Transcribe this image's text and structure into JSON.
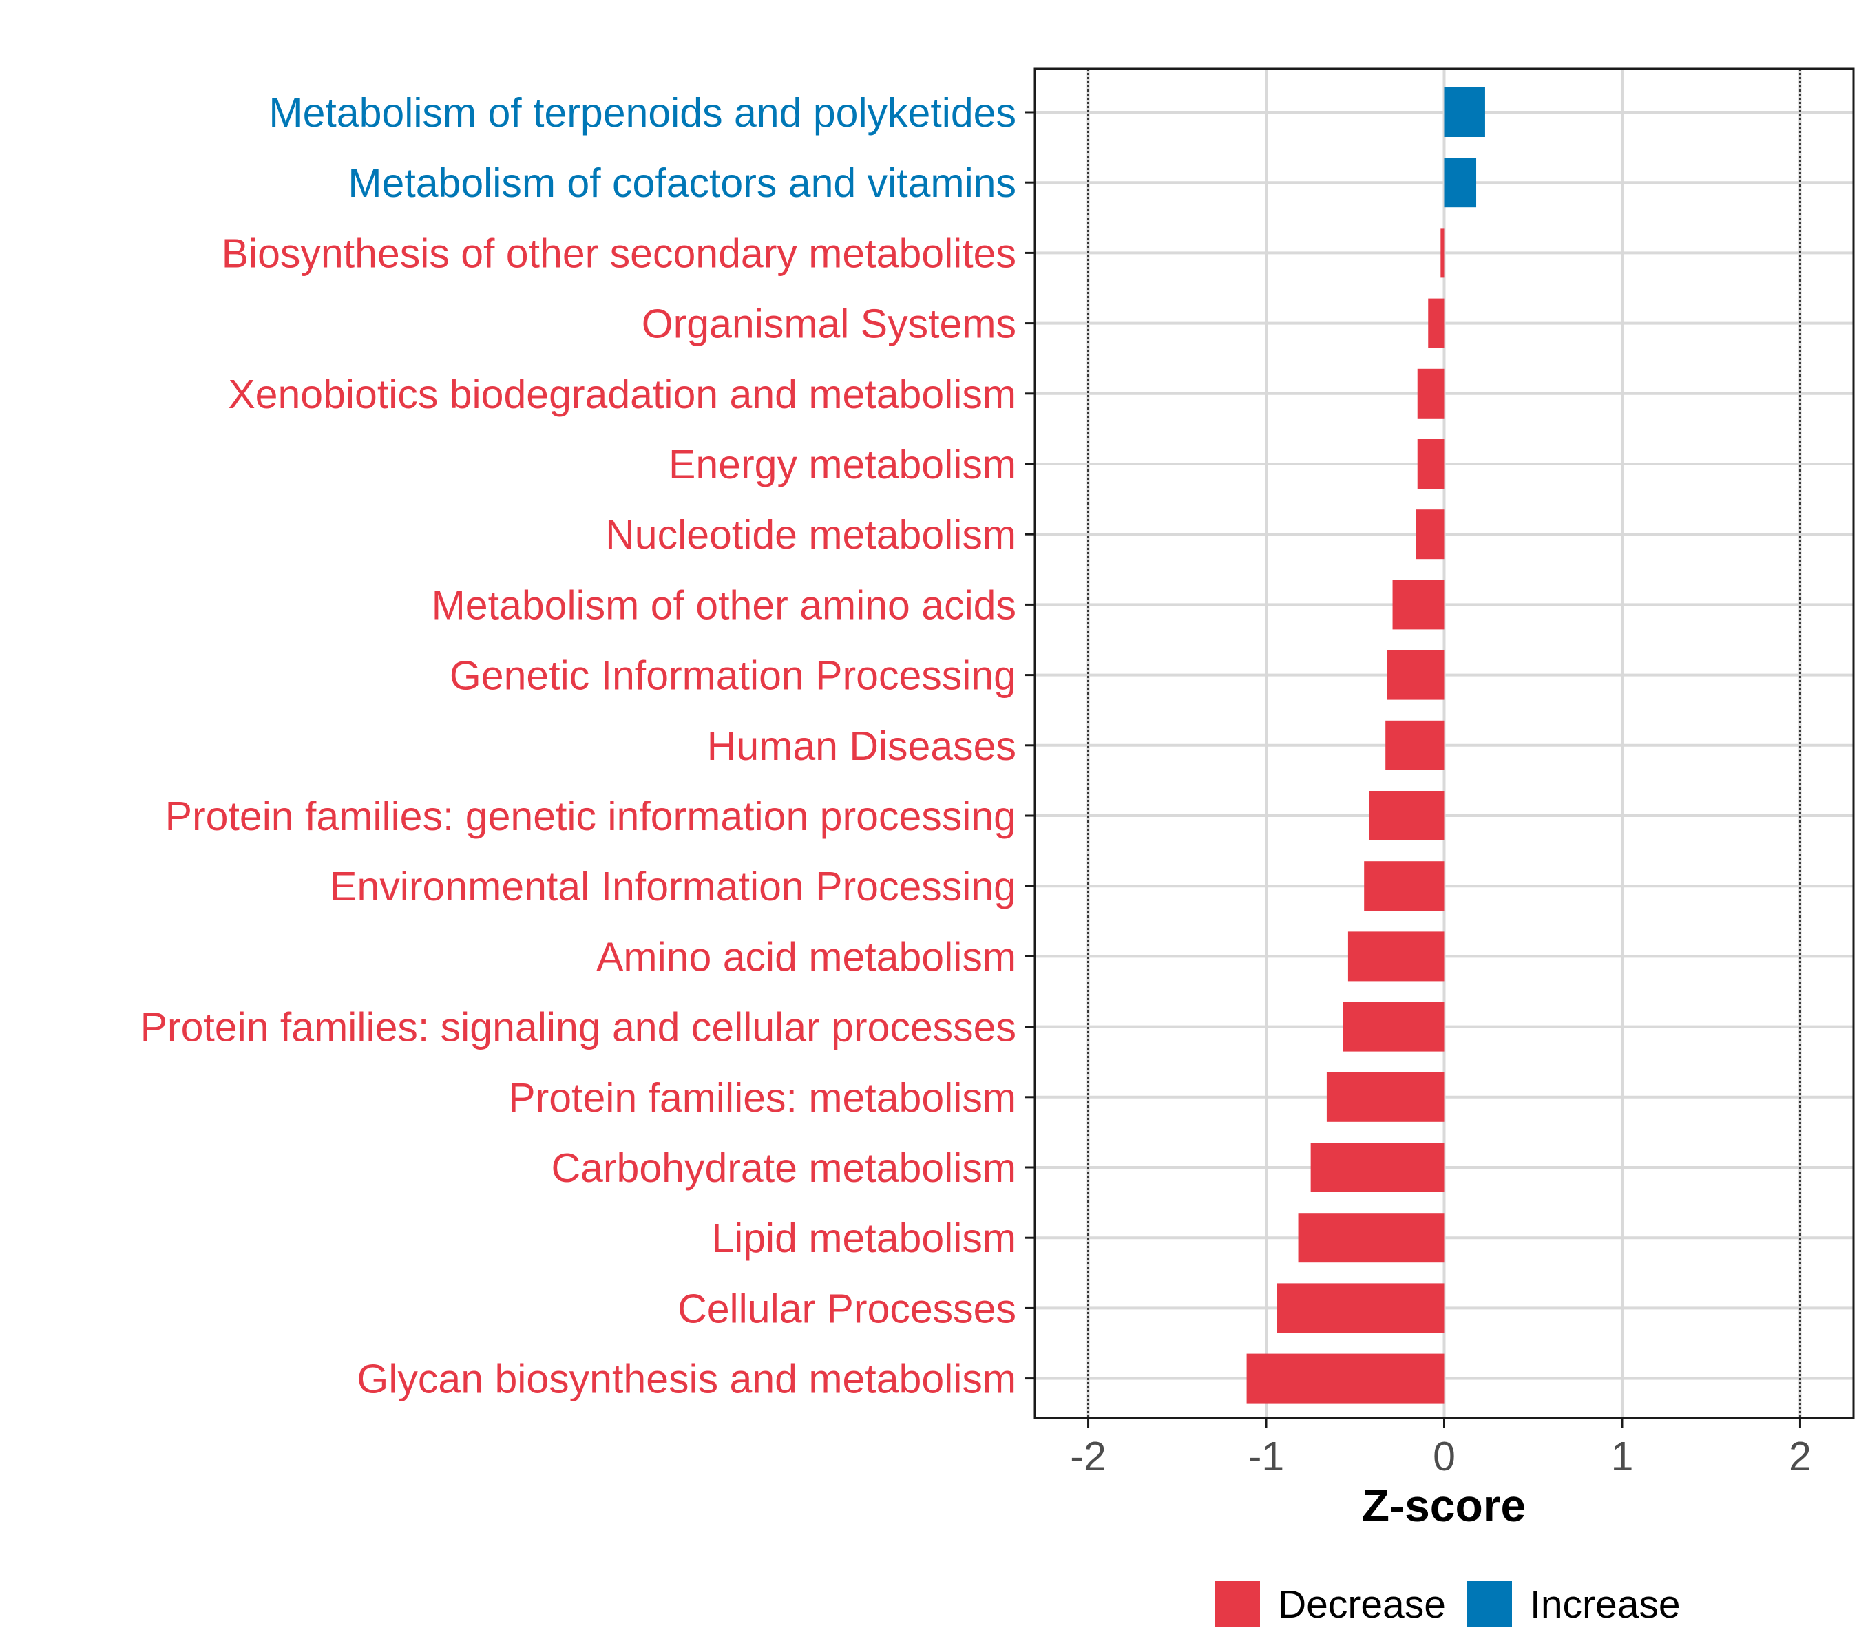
{
  "colors": {
    "decrease": "#E63946",
    "increase": "#0077B6",
    "grid": "#D9D9D9",
    "axis": "#1A1A1A",
    "tick_label": "#4D4D4D",
    "vline": "#333333"
  },
  "chart_data": {
    "type": "bar",
    "orientation": "horizontal",
    "xlabel": "Z-score",
    "xlim": [
      -2.3,
      2.3
    ],
    "xticks": [
      -2,
      -1,
      0,
      1,
      2
    ],
    "xtick_labels": [
      "-2",
      "-1",
      "0",
      "1",
      "2"
    ],
    "reference_lines": [
      -2,
      2
    ],
    "grid": true,
    "legend": {
      "position": "bottom",
      "entries": [
        {
          "key": "decrease",
          "label": "Decrease"
        },
        {
          "key": "increase",
          "label": "Increase"
        }
      ]
    },
    "categories": [
      "Metabolism of terpenoids and polyketides",
      "Metabolism of cofactors and vitamins",
      "Biosynthesis of other secondary metabolites",
      "Organismal Systems",
      "Xenobiotics biodegradation and metabolism",
      "Energy metabolism",
      "Nucleotide metabolism",
      "Metabolism of other amino acids",
      "Genetic Information Processing",
      "Human Diseases",
      "Protein families: genetic information processing",
      "Environmental Information Processing",
      "Amino acid metabolism",
      "Protein families: signaling and cellular processes",
      "Protein families: metabolism",
      "Carbohydrate metabolism",
      "Lipid metabolism",
      "Cellular Processes",
      "Glycan biosynthesis and metabolism"
    ],
    "values": [
      0.23,
      0.18,
      -0.02,
      -0.09,
      -0.15,
      -0.15,
      -0.16,
      -0.29,
      -0.32,
      -0.33,
      -0.42,
      -0.45,
      -0.54,
      -0.57,
      -0.66,
      -0.75,
      -0.82,
      -0.94,
      -1.11
    ],
    "direction": [
      "increase",
      "increase",
      "decrease",
      "decrease",
      "decrease",
      "decrease",
      "decrease",
      "decrease",
      "decrease",
      "decrease",
      "decrease",
      "decrease",
      "decrease",
      "decrease",
      "decrease",
      "decrease",
      "decrease",
      "decrease",
      "decrease"
    ]
  }
}
